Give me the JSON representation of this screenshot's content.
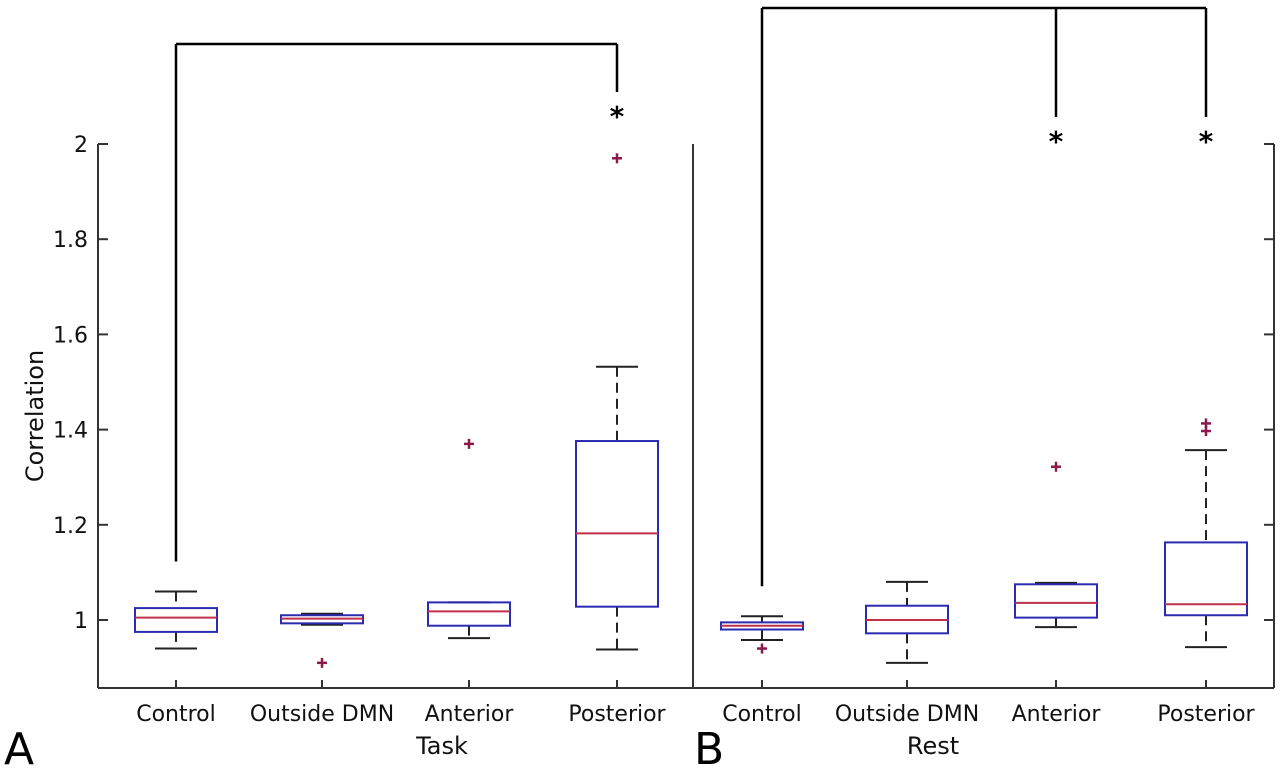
{
  "chart_data": {
    "type": "box",
    "ylabel": "Correlation",
    "y_ticks": [
      "1",
      "1.2",
      "1.4",
      "1.6",
      "1.8",
      "2"
    ],
    "colors": {
      "box": "#2b2bb0",
      "median": "#c0304a",
      "outlier": "#8b1a4a",
      "whisker": "#222222"
    },
    "panels": [
      {
        "letter": "A",
        "xlabel": "Task",
        "categories": [
          "Control",
          "Outside DMN",
          "Anterior",
          "Posterior"
        ],
        "boxes": [
          {
            "min": 0.94,
            "q1": 0.975,
            "median": 1.005,
            "q3": 1.025,
            "max": 1.06,
            "outliers": []
          },
          {
            "min": 0.99,
            "q1": 0.993,
            "median": 1.003,
            "q3": 1.01,
            "max": 1.013,
            "outliers": [
              0.91
            ]
          },
          {
            "min": 0.962,
            "q1": 0.988,
            "median": 1.018,
            "q3": 1.037,
            "max": 1.037,
            "outliers": [
              1.37
            ]
          },
          {
            "min": 0.938,
            "q1": 1.028,
            "median": 1.182,
            "q3": 1.376,
            "max": 1.532,
            "outliers": [
              1.97
            ]
          }
        ],
        "significance": {
          "marks": [
            "*"
          ],
          "pairs": [
            [
              0,
              3
            ]
          ]
        }
      },
      {
        "letter": "B",
        "xlabel": "Rest",
        "categories": [
          "Control",
          "Outside DMN",
          "Anterior",
          "Posterior"
        ],
        "boxes": [
          {
            "min": 0.958,
            "q1": 0.98,
            "median": 0.988,
            "q3": 0.995,
            "max": 1.008,
            "outliers": [
              0.94
            ]
          },
          {
            "min": 0.91,
            "q1": 0.972,
            "median": 1.0,
            "q3": 1.03,
            "max": 1.08,
            "outliers": []
          },
          {
            "min": 0.985,
            "q1": 1.005,
            "median": 1.036,
            "q3": 1.075,
            "max": 1.078,
            "outliers": [
              1.322
            ]
          },
          {
            "min": 0.943,
            "q1": 1.01,
            "median": 1.033,
            "q3": 1.163,
            "max": 1.357,
            "outliers": [
              1.397,
              1.413
            ]
          }
        ],
        "significance": {
          "marks": [
            "*",
            "*"
          ],
          "pairs": [
            [
              0,
              2
            ],
            [
              0,
              3
            ]
          ]
        }
      }
    ]
  }
}
